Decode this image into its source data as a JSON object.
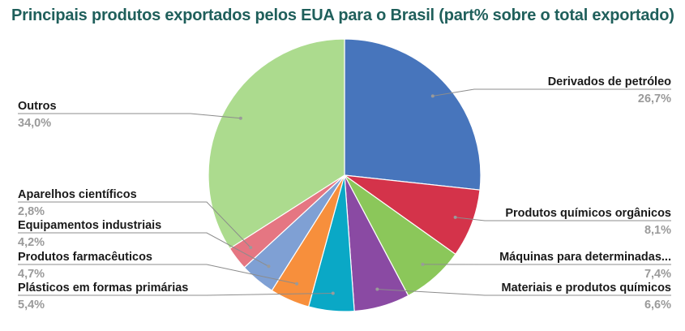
{
  "chart_data": {
    "type": "pie",
    "title": "Principais produtos exportados pelos EUA para o Brasil (part% sobre o total exportado)",
    "slices": [
      {
        "name": "Derivados de petróleo",
        "label": "26,7%",
        "value": 26.7,
        "color": "#4775bc"
      },
      {
        "name": "Produtos químicos orgânicos",
        "label": "8,1%",
        "value": 8.1,
        "color": "#d4334a"
      },
      {
        "name": "Máquinas para determinadas...",
        "label": "7,4%",
        "value": 7.4,
        "color": "#8bc75a"
      },
      {
        "name": "Materiais e produtos químicos",
        "label": "6,6%",
        "value": 6.6,
        "color": "#8a4aa3"
      },
      {
        "name": "Plásticos em formas primárias",
        "label": "5,4%",
        "value": 5.4,
        "color": "#0aa8c6"
      },
      {
        "name": "Produtos farmacêuticos",
        "label": "4,7%",
        "value": 4.7,
        "color": "#f78f3c"
      },
      {
        "name": "Equipamentos industriais",
        "label": "4,2%",
        "value": 4.2,
        "color": "#7fa0d4"
      },
      {
        "name": "Aparelhos científicos",
        "label": "2,8%",
        "value": 2.8,
        "color": "#e57682"
      },
      {
        "name": "Outros",
        "label": "34,0%",
        "value": 34.0,
        "color": "#acdb8e"
      }
    ],
    "start_angle": "12 o'clock",
    "direction": "clockwise",
    "legend": "none (leader-line labels)"
  }
}
